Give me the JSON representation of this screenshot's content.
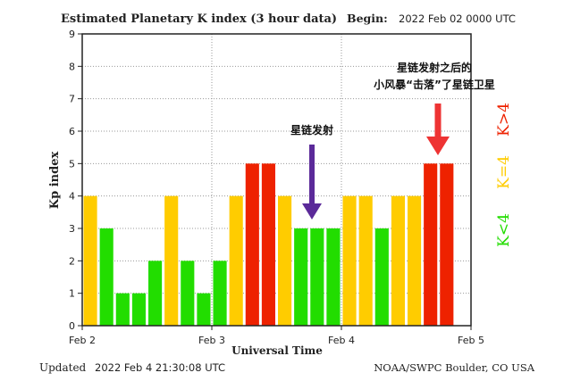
{
  "header": {
    "title": "Estimated Planetary K index (3 hour data)",
    "begin_label": "Begin:",
    "begin_value": "2022 Feb 02 0000 UTC"
  },
  "footer": {
    "updated_label": "Updated",
    "updated_value": "2022 Feb  4 21:30:08 UTC",
    "credit": "NOAA/SWPC Boulder, CO USA"
  },
  "legend": {
    "high": "K>4",
    "mid": "K=4",
    "low": "K<4",
    "colors": {
      "high": "#ee2200",
      "mid": "#ffcc00",
      "low": "#22dd00"
    }
  },
  "annotations": {
    "launch": "星链发射",
    "storm_line1": "星链发射之后的",
    "storm_line2": "小风暴“击落”了星链卫星",
    "arrow_colors": {
      "launch": "#5b2a99",
      "storm": "#ee3333"
    }
  },
  "chart_data": {
    "type": "bar",
    "title": "Estimated Planetary K index (3 hour data)",
    "xlabel": "Universal Time",
    "ylabel": "Kp index",
    "ylim": [
      0,
      9
    ],
    "yticks": [
      0,
      1,
      2,
      3,
      4,
      5,
      6,
      7,
      8,
      9
    ],
    "xticks": [
      "Feb 2",
      "Feb 3",
      "Feb 4",
      "Feb 5"
    ],
    "grid": true,
    "interval_hours": 3,
    "values": [
      4,
      3,
      1,
      1,
      2,
      4,
      2,
      1,
      2,
      4,
      5,
      5,
      4,
      3,
      3,
      3,
      4,
      4,
      3,
      4,
      4,
      5,
      5
    ]
  }
}
